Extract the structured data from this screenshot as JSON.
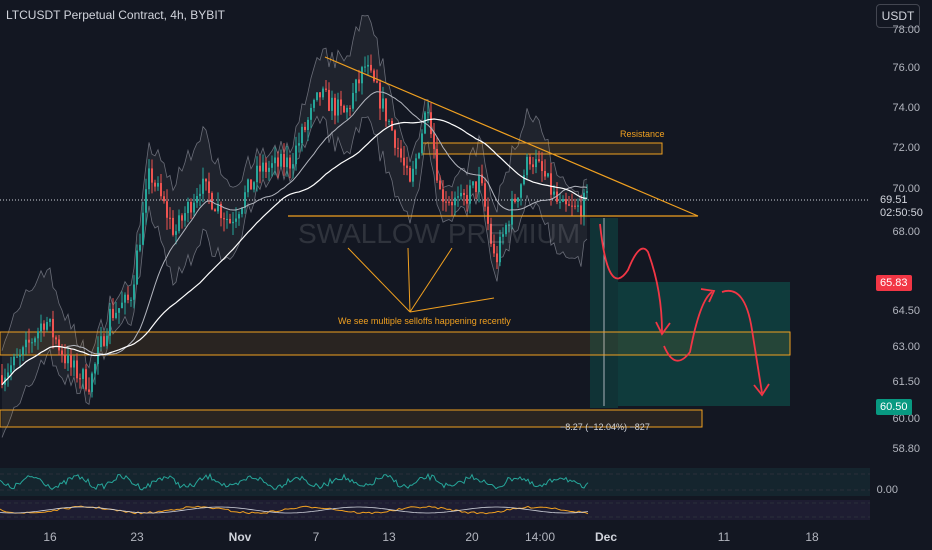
{
  "header": {
    "title": "LTCUSDT Perpetual Contract, 4h, BYBIT",
    "currency_button": "USDT"
  },
  "watermark": "SWALLOW PREMIUM",
  "annotations": {
    "resistance": "Resistance",
    "selloffs": "We see multiple selloffs happening recently",
    "measure": "−8.27 (−12.04%) −827"
  },
  "price_axis": {
    "ticks": [
      "76.00",
      "74.00",
      "72.00",
      "70.00",
      "68.00",
      "64.50",
      "63.00",
      "61.50",
      "60.00",
      "58.80"
    ],
    "top_partial": "78.00",
    "current_price": "69.51",
    "countdown": "02:50:50",
    "target_upper": "65.83",
    "target_lower": "60.50",
    "oscillator_zero": "0.00"
  },
  "time_axis": {
    "labels": [
      "16",
      "23",
      "Nov",
      "7",
      "13",
      "20",
      "14:00",
      "Dec",
      "11",
      "18"
    ]
  },
  "colors": {
    "background": "#131722",
    "up": "#26a69a",
    "down": "#ef5350",
    "drawing": "#f0a020",
    "target_red": "#f23645",
    "target_green": "#089981"
  },
  "chart_data": {
    "type": "candlestick",
    "symbol": "LTCUSDT",
    "interval": "4h",
    "ylim": [
      58.5,
      78
    ],
    "y_ticks": [
      58.8,
      60.0,
      61.5,
      63.0,
      64.5,
      68.0,
      70.0,
      72.0,
      74.0,
      76.0
    ],
    "current_price": 69.51,
    "resistance_zone": [
      71.8,
      72.4
    ],
    "support_zones": [
      [
        62.7,
        63.9
      ],
      [
        59.6,
        60.4
      ]
    ],
    "triangle_lines": {
      "descending_from": 76.5,
      "support_level": 68.8
    },
    "projection": {
      "path": [
        68.8,
        65.8,
        62.5,
        64.0,
        66.2,
        64.2,
        61.0
      ],
      "targets": [
        65.83,
        60.5
      ]
    },
    "measured_move": {
      "change": -8.27,
      "percent": -12.04,
      "ticks": -827
    },
    "grid": false,
    "legend": "top-left"
  }
}
